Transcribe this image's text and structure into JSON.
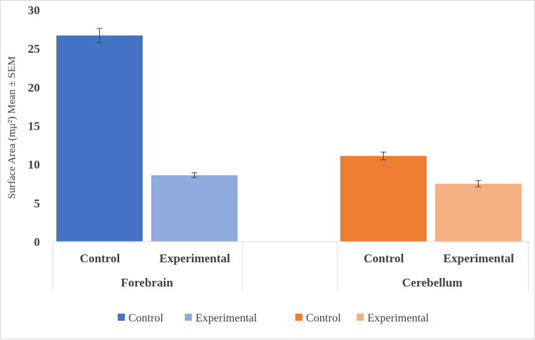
{
  "chart_data": {
    "type": "bar",
    "title": "",
    "ylabel": "Surface Area (mμ²) Mean ± SEM",
    "xlabel": "",
    "ylim": [
      0,
      30
    ],
    "yticks": [
      "0",
      "5",
      "10",
      "15",
      "20",
      "25",
      "30"
    ],
    "groups": [
      "Forebrain",
      "Cerebellum"
    ],
    "categories": [
      "Control",
      "Experimental"
    ],
    "series": [
      {
        "name": "Control",
        "group": "Forebrain",
        "category": "Control",
        "value": 26.7,
        "sem": 0.9,
        "color": "#4472c4"
      },
      {
        "name": "Experimental",
        "group": "Forebrain",
        "category": "Experimental",
        "value": 8.6,
        "sem": 0.3,
        "color": "#8faadc"
      },
      {
        "name": "Control",
        "group": "Cerebellum",
        "category": "Control",
        "value": 11.1,
        "sem": 0.5,
        "color": "#ed7d31"
      },
      {
        "name": "Experimental",
        "group": "Cerebellum",
        "category": "Experimental",
        "value": 7.5,
        "sem": 0.4,
        "color": "#f4b183"
      }
    ],
    "legend": [
      {
        "label": "Control",
        "color": "#4472c4"
      },
      {
        "label": "Experimental",
        "color": "#8faadc"
      },
      {
        "label": "Control",
        "color": "#ed7d31"
      },
      {
        "label": "Experimental",
        "color": "#f4b183"
      }
    ],
    "legend_position": "bottom",
    "grid": false
  }
}
